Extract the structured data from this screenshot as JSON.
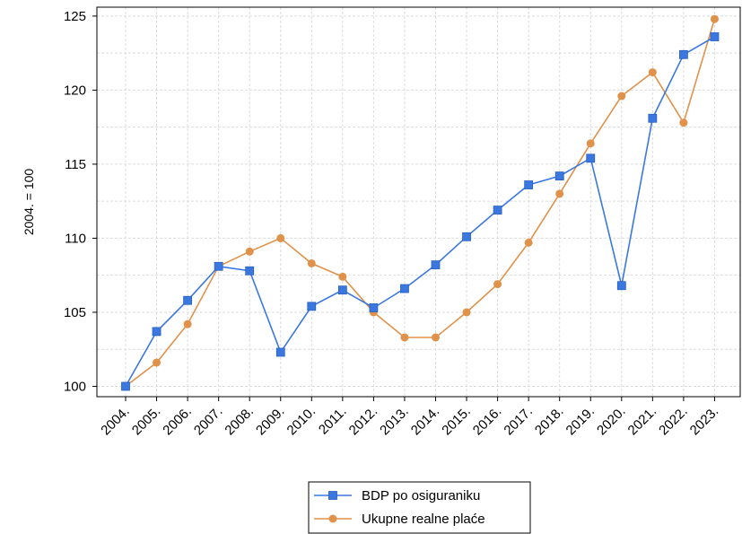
{
  "chart_data": {
    "type": "line",
    "title": "",
    "xlabel": "",
    "ylabel": "2004. = 100",
    "categories": [
      "2004.",
      "2005.",
      "2006.",
      "2007.",
      "2008.",
      "2009.",
      "2010.",
      "2011.",
      "2012.",
      "2013.",
      "2014.",
      "2015.",
      "2016.",
      "2017.",
      "2018.",
      "2019.",
      "2020.",
      "2021.",
      "2022.",
      "2023."
    ],
    "ylim": [
      99.3,
      125.6
    ],
    "yticks": [
      100,
      105,
      110,
      115,
      120,
      125
    ],
    "grid": true,
    "legend_position": "bottom",
    "series": [
      {
        "name": "BDP po osiguraniku",
        "color": "#3a78e0",
        "marker": "square",
        "values": [
          100.0,
          103.7,
          105.8,
          108.1,
          107.8,
          102.3,
          105.4,
          106.5,
          105.3,
          106.6,
          108.2,
          110.1,
          111.9,
          113.6,
          114.2,
          115.4,
          106.8,
          118.1,
          122.4,
          123.6
        ]
      },
      {
        "name": "Ukupne realne plaće",
        "color": "#e0914a",
        "marker": "circle",
        "values": [
          100.0,
          101.6,
          104.2,
          108.1,
          109.1,
          110.0,
          108.3,
          107.4,
          105.0,
          103.3,
          103.3,
          105.0,
          106.9,
          109.7,
          113.0,
          116.4,
          119.6,
          121.2,
          117.8,
          124.8
        ]
      }
    ]
  }
}
